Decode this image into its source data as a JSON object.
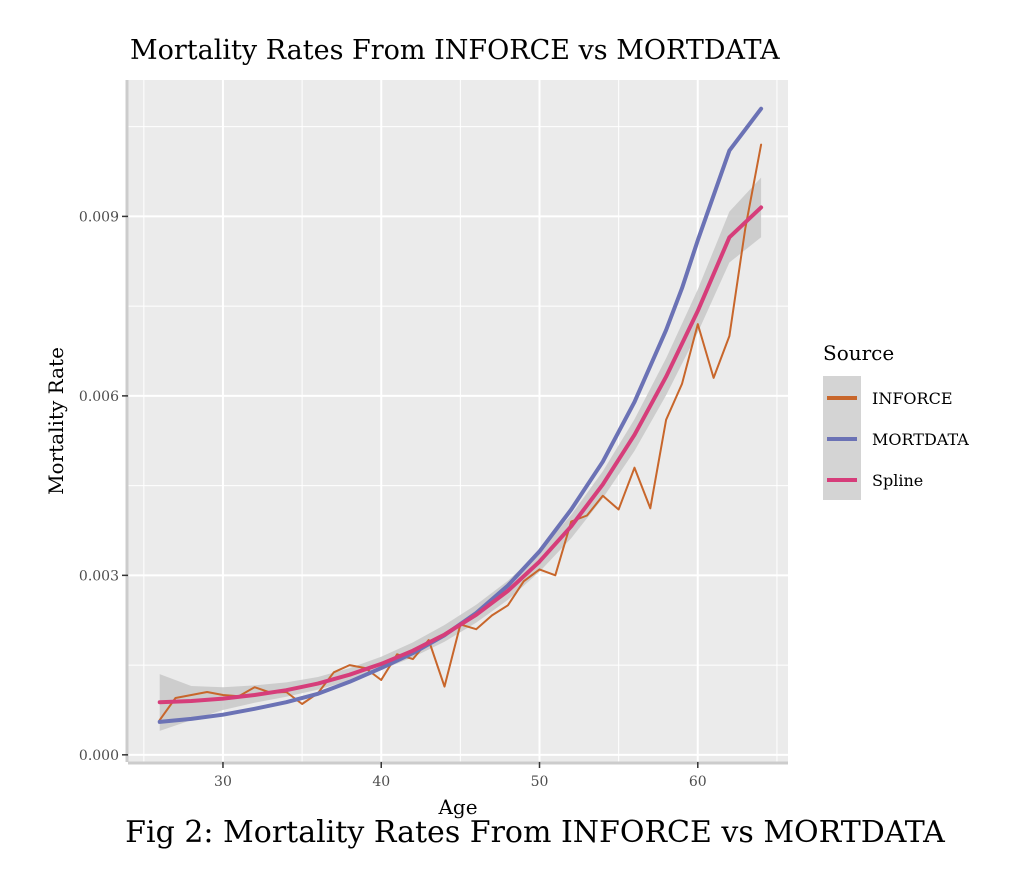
{
  "caption": "Fig 2: Mortality Rates From INFORCE vs MORTDATA",
  "colors": {
    "panel": "#ebebeb",
    "grid": "#ffffff",
    "ribbon": "#c8c8c8",
    "INFORCE": "#c8662b",
    "MORTDATA": "#6b72b5",
    "Spline": "#d63d7a"
  },
  "chart_data": {
    "type": "line",
    "title": "Mortality Rates From INFORCE vs MORTDATA",
    "xlabel": "Age",
    "ylabel": "Mortality Rate",
    "xlim": [
      24,
      65.7
    ],
    "ylim": [
      -0.00012,
      0.01128
    ],
    "x_ticks": [
      30,
      40,
      50,
      60
    ],
    "x_tick_labels": [
      "30",
      "40",
      "50",
      "60"
    ],
    "y_ticks": [
      0.0,
      0.003,
      0.006,
      0.009
    ],
    "y_tick_labels": [
      "0.000",
      "0.003",
      "0.006",
      "0.009"
    ],
    "grid": true,
    "legend": {
      "title": "Source",
      "position": "right",
      "entries": [
        "INFORCE",
        "MORTDATA",
        "Spline"
      ]
    },
    "series": [
      {
        "name": "INFORCE",
        "x": [
          26,
          27,
          28,
          29,
          30,
          31,
          32,
          33,
          34,
          35,
          36,
          37,
          38,
          39,
          40,
          41,
          42,
          43,
          44,
          45,
          46,
          47,
          48,
          49,
          50,
          51,
          52,
          53,
          54,
          55,
          56,
          57,
          58,
          59,
          60,
          61,
          62,
          63,
          64
        ],
        "y": [
          0.00058,
          0.00095,
          0.001,
          0.00105,
          0.001,
          0.00098,
          0.00113,
          0.00104,
          0.00105,
          0.00085,
          0.00103,
          0.00138,
          0.0015,
          0.00145,
          0.00125,
          0.00168,
          0.0016,
          0.00192,
          0.00114,
          0.00218,
          0.0021,
          0.00233,
          0.0025,
          0.0029,
          0.0031,
          0.003,
          0.0039,
          0.004,
          0.00433,
          0.0041,
          0.0048,
          0.00412,
          0.0056,
          0.0062,
          0.0072,
          0.0063,
          0.007,
          0.0088,
          0.0102
        ]
      },
      {
        "name": "MORTDATA",
        "x": [
          26,
          28,
          30,
          32,
          34,
          36,
          38,
          40,
          42,
          44,
          46,
          48,
          50,
          52,
          54,
          56,
          58,
          59,
          60,
          62,
          64
        ],
        "y": [
          0.00055,
          0.0006,
          0.00067,
          0.00077,
          0.00088,
          0.00102,
          0.00122,
          0.00145,
          0.0017,
          0.002,
          0.00237,
          0.00283,
          0.0034,
          0.0041,
          0.0049,
          0.0059,
          0.0071,
          0.0078,
          0.0086,
          0.0101,
          0.0108
        ]
      },
      {
        "name": "Spline",
        "x": [
          26,
          28,
          30,
          32,
          34,
          36,
          38,
          40,
          42,
          44,
          46,
          48,
          50,
          52,
          54,
          56,
          58,
          60,
          62,
          64
        ],
        "y": [
          0.00088,
          0.0009,
          0.00094,
          0.001,
          0.00108,
          0.00119,
          0.00134,
          0.00152,
          0.00174,
          0.00201,
          0.00234,
          0.00274,
          0.00323,
          0.00382,
          0.00452,
          0.00535,
          0.00632,
          0.00742,
          0.00865,
          0.00915
        ]
      }
    ],
    "spline_band": {
      "lower": [
        0.0004,
        0.00058,
        0.00075,
        0.00087,
        0.00097,
        0.00109,
        0.00124,
        0.00142,
        0.00163,
        0.00189,
        0.00221,
        0.00259,
        0.00306,
        0.00362,
        0.00429,
        0.00508,
        0.00601,
        0.00706,
        0.00823,
        0.00865
      ],
      "upper": [
        0.00135,
        0.00115,
        0.00113,
        0.00116,
        0.00121,
        0.0013,
        0.00145,
        0.00164,
        0.00188,
        0.00217,
        0.00251,
        0.00291,
        0.0034,
        0.00401,
        0.00474,
        0.00561,
        0.00663,
        0.00778,
        0.00908,
        0.00965
      ]
    }
  }
}
